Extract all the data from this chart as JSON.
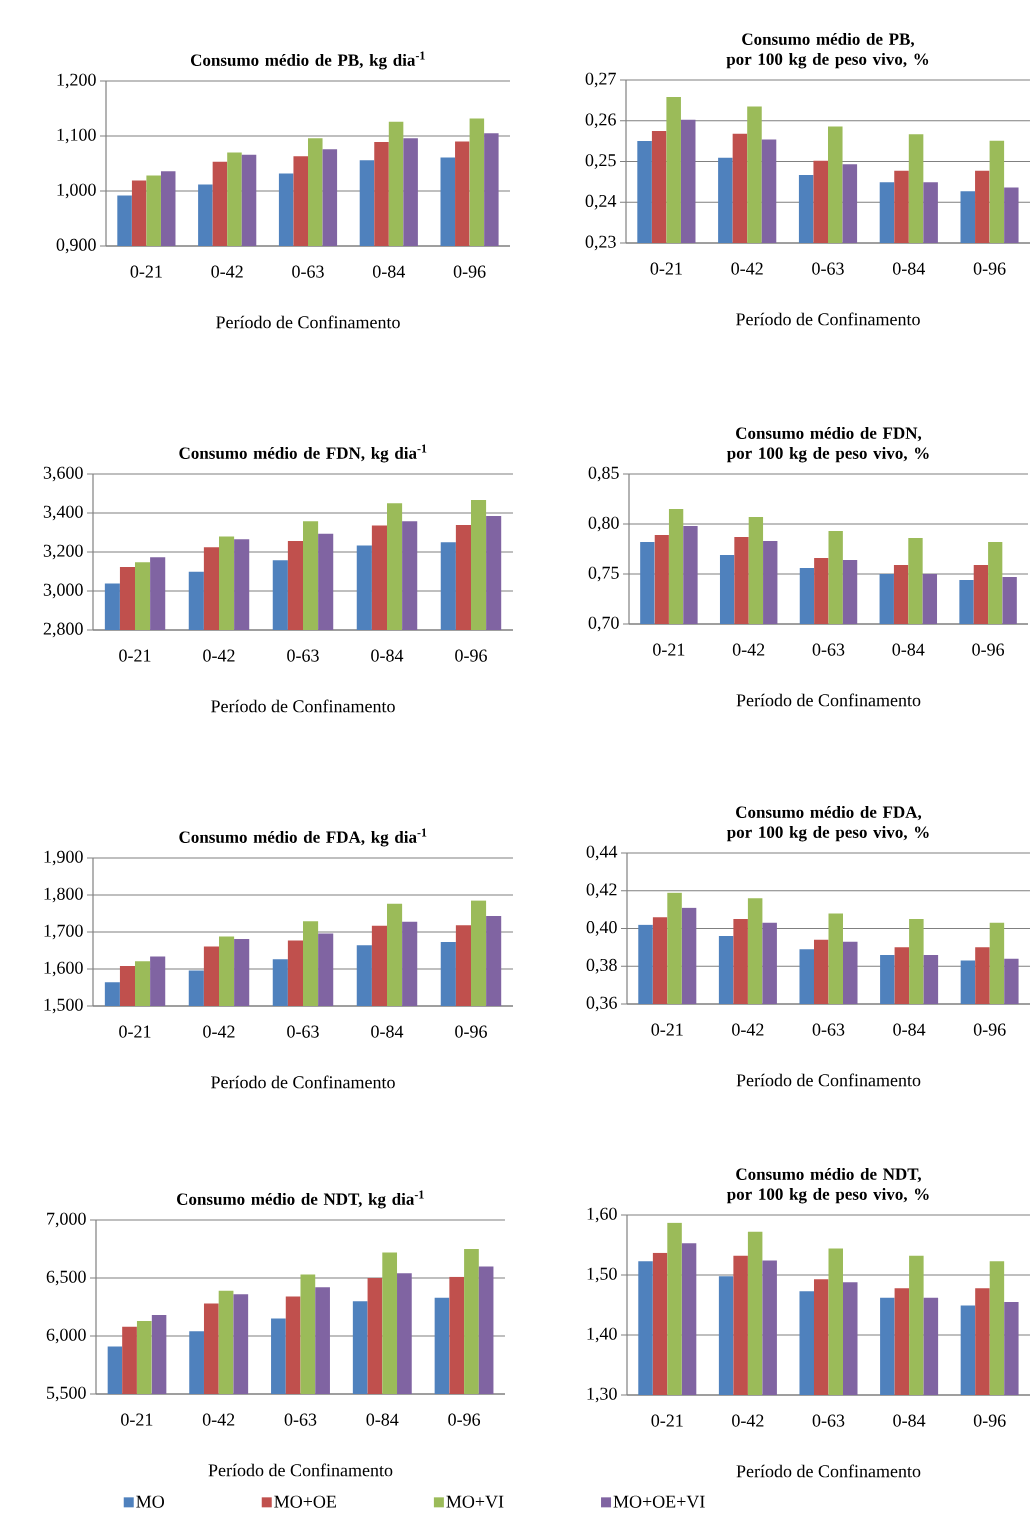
{
  "chart_data": [
    {
      "type": "bar",
      "title": "Consumo médio de PB, kg dia$^{-1}$",
      "xlabel": "Período de Confinamento",
      "categories": [
        "0-21",
        "0-42",
        "0-63",
        "0-84",
        "0-96"
      ],
      "series": [
        {
          "color": "#4f81bd",
          "values": [
            0.992,
            1.012,
            1.032,
            1.056,
            1.061
          ]
        },
        {
          "color": "#c0504d",
          "values": [
            1.019,
            1.053,
            1.063,
            1.089,
            1.09
          ]
        },
        {
          "color": "#9bbb59",
          "values": [
            1.028,
            1.07,
            1.096,
            1.126,
            1.132
          ]
        },
        {
          "color": "#8064a2",
          "values": [
            1.036,
            1.066,
            1.076,
            1.096,
            1.105
          ]
        }
      ],
      "ylim": [
        0.9,
        1.2
      ],
      "yticks": [
        {
          "value": 0.9,
          "label": "0,900"
        },
        {
          "value": 1.0,
          "label": "1,000"
        },
        {
          "value": 1.1,
          "label": "1,100"
        },
        {
          "value": 1.2,
          "label": "1,200"
        }
      ],
      "grid": "y"
    },
    {
      "type": "bar",
      "title": "Consumo médio de PB, por 100 kg de peso vivo, %",
      "xlabel": "Período de Confinamento",
      "categories": [
        "0-21",
        "0-42",
        "0-63",
        "0-84",
        "0-96"
      ],
      "series": [
        {
          "color": "#4f81bd",
          "values": [
            0.255,
            0.2509,
            0.2467,
            0.2449,
            0.2427
          ]
        },
        {
          "color": "#c0504d",
          "values": [
            0.2575,
            0.2568,
            0.2502,
            0.2477,
            0.2477
          ]
        },
        {
          "color": "#9bbb59",
          "values": [
            0.2658,
            0.2635,
            0.2586,
            0.2567,
            0.2551
          ]
        },
        {
          "color": "#8064a2",
          "values": [
            0.2603,
            0.2554,
            0.2493,
            0.2449,
            0.2436
          ]
        }
      ],
      "ylim": [
        0.23,
        0.27
      ],
      "yticks": [
        {
          "value": 0.23,
          "label": "0,23"
        },
        {
          "value": 0.24,
          "label": "0,24"
        },
        {
          "value": 0.25,
          "label": "0,25"
        },
        {
          "value": 0.26,
          "label": "0,26"
        },
        {
          "value": 0.27,
          "label": "0,27"
        }
      ],
      "grid": "y"
    },
    {
      "type": "bar",
      "title": "Consumo médio de FDN, kg dia$^{-1}$",
      "xlabel": "Período de Confinamento",
      "categories": [
        "0-21",
        "0-42",
        "0-63",
        "0-84",
        "0-96"
      ],
      "series": [
        {
          "color": "#4f81bd",
          "values": [
            3.038,
            3.099,
            3.157,
            3.233,
            3.25
          ]
        },
        {
          "color": "#c0504d",
          "values": [
            3.123,
            3.224,
            3.257,
            3.336,
            3.339
          ]
        },
        {
          "color": "#9bbb59",
          "values": [
            3.147,
            3.279,
            3.358,
            3.45,
            3.467
          ]
        },
        {
          "color": "#8064a2",
          "values": [
            3.173,
            3.265,
            3.294,
            3.358,
            3.385
          ]
        }
      ],
      "ylim": [
        2.8,
        3.6
      ],
      "yticks": [
        {
          "value": 2.8,
          "label": "2,800"
        },
        {
          "value": 3.0,
          "label": "3,000"
        },
        {
          "value": 3.2,
          "label": "3,200"
        },
        {
          "value": 3.4,
          "label": "3,400"
        },
        {
          "value": 3.6,
          "label": "3,600"
        }
      ],
      "grid": "y"
    },
    {
      "type": "bar",
      "title": "Consumo médio de FDN, por 100 kg de peso vivo, %",
      "xlabel": "Período de Confinamento",
      "categories": [
        "0-21",
        "0-42",
        "0-63",
        "0-84",
        "0-96"
      ],
      "series": [
        {
          "color": "#4f81bd",
          "values": [
            0.782,
            0.769,
            0.756,
            0.75,
            0.744
          ]
        },
        {
          "color": "#c0504d",
          "values": [
            0.789,
            0.787,
            0.766,
            0.759,
            0.759
          ]
        },
        {
          "color": "#9bbb59",
          "values": [
            0.815,
            0.807,
            0.793,
            0.786,
            0.782
          ]
        },
        {
          "color": "#8064a2",
          "values": [
            0.798,
            0.783,
            0.764,
            0.75,
            0.747
          ]
        }
      ],
      "ylim": [
        0.7,
        0.85
      ],
      "yticks": [
        {
          "value": 0.7,
          "label": "0,70"
        },
        {
          "value": 0.75,
          "label": "0,75"
        },
        {
          "value": 0.8,
          "label": "0,80"
        },
        {
          "value": 0.85,
          "label": "0,85"
        }
      ],
      "grid": "y"
    },
    {
      "type": "bar",
      "title": "Consumo médio de FDA, kg dia$^{-1}$",
      "xlabel": "Período de Confinamento",
      "categories": [
        "0-21",
        "0-42",
        "0-63",
        "0-84",
        "0-96"
      ],
      "series": [
        {
          "color": "#4f81bd",
          "values": [
            1.564,
            1.596,
            1.626,
            1.664,
            1.673
          ]
        },
        {
          "color": "#c0504d",
          "values": [
            1.608,
            1.661,
            1.677,
            1.717,
            1.718
          ]
        },
        {
          "color": "#9bbb59",
          "values": [
            1.621,
            1.688,
            1.729,
            1.776,
            1.785
          ]
        },
        {
          "color": "#8064a2",
          "values": [
            1.634,
            1.681,
            1.696,
            1.728,
            1.743
          ]
        }
      ],
      "ylim": [
        1.5,
        1.9
      ],
      "yticks": [
        {
          "value": 1.5,
          "label": "1,500"
        },
        {
          "value": 1.6,
          "label": "1,600"
        },
        {
          "value": 1.7,
          "label": "1,700"
        },
        {
          "value": 1.8,
          "label": "1,800"
        },
        {
          "value": 1.9,
          "label": "1,900"
        }
      ],
      "grid": "y"
    },
    {
      "type": "bar",
      "title": "Consumo médio de FDA, por 100 kg de peso vivo, %",
      "xlabel": "Período de Confinamento",
      "categories": [
        "0-21",
        "0-42",
        "0-63",
        "0-84",
        "0-96"
      ],
      "series": [
        {
          "color": "#4f81bd",
          "values": [
            0.402,
            0.396,
            0.389,
            0.386,
            0.383
          ]
        },
        {
          "color": "#c0504d",
          "values": [
            0.406,
            0.405,
            0.394,
            0.39,
            0.39
          ]
        },
        {
          "color": "#9bbb59",
          "values": [
            0.419,
            0.416,
            0.408,
            0.405,
            0.403
          ]
        },
        {
          "color": "#8064a2",
          "values": [
            0.411,
            0.403,
            0.393,
            0.386,
            0.384
          ]
        }
      ],
      "ylim": [
        0.36,
        0.44
      ],
      "yticks": [
        {
          "value": 0.36,
          "label": "0,36"
        },
        {
          "value": 0.38,
          "label": "0,38"
        },
        {
          "value": 0.4,
          "label": "0,40"
        },
        {
          "value": 0.42,
          "label": "0,42"
        },
        {
          "value": 0.44,
          "label": "0,44"
        }
      ],
      "grid": "y"
    },
    {
      "type": "bar",
      "title": "Consumo médio de NDT, kg dia$^{-1}$",
      "xlabel": "Período de Confinamento",
      "categories": [
        "0-21",
        "0-42",
        "0-63",
        "0-84",
        "0-96"
      ],
      "series": [
        {
          "name": "MO",
          "color": "#4f81bd",
          "values": [
            5.91,
            6.04,
            6.15,
            6.3,
            6.33
          ]
        },
        {
          "name": "MO+OE",
          "color": "#c0504d",
          "values": [
            6.08,
            6.28,
            6.34,
            6.5,
            6.51
          ]
        },
        {
          "name": "MO+VI",
          "color": "#9bbb59",
          "values": [
            6.13,
            6.39,
            6.53,
            6.72,
            6.75
          ]
        },
        {
          "name": "MO+OE+VI",
          "color": "#8064a2",
          "values": [
            6.18,
            6.36,
            6.42,
            6.54,
            6.6
          ]
        }
      ],
      "ylim": [
        5.5,
        7.0
      ],
      "yticks": [
        {
          "value": 5.5,
          "label": "5,500"
        },
        {
          "value": 6.0,
          "label": "6,000"
        },
        {
          "value": 6.5,
          "label": "6,500"
        },
        {
          "value": 7.0,
          "label": "7,000"
        }
      ],
      "grid": "y",
      "legend": "bottom"
    },
    {
      "type": "bar",
      "title": "Consumo médio de NDT, por 100 kg de peso vivo, %",
      "xlabel": "Período de Confinamento",
      "categories": [
        "0-21",
        "0-42",
        "0-63",
        "0-84",
        "0-96"
      ],
      "series": [
        {
          "color": "#4f81bd",
          "values": [
            1.523,
            1.498,
            1.473,
            1.462,
            1.449
          ]
        },
        {
          "color": "#c0504d",
          "values": [
            1.537,
            1.532,
            1.493,
            1.478,
            1.478
          ]
        },
        {
          "color": "#9bbb59",
          "values": [
            1.587,
            1.572,
            1.544,
            1.532,
            1.523
          ]
        },
        {
          "color": "#8064a2",
          "values": [
            1.553,
            1.524,
            1.488,
            1.462,
            1.455
          ]
        }
      ],
      "ylim": [
        1.3,
        1.6
      ],
      "yticks": [
        {
          "value": 1.3,
          "label": "1,30"
        },
        {
          "value": 1.4,
          "label": "1,40"
        },
        {
          "value": 1.5,
          "label": "1,50"
        },
        {
          "value": 1.6,
          "label": "1,60"
        }
      ],
      "grid": "y"
    }
  ]
}
